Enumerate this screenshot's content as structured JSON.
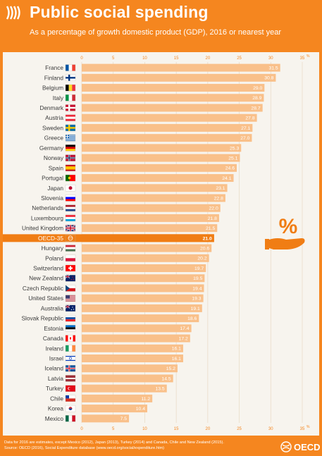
{
  "header": {
    "title": "Public social spending",
    "subtitle": "As a percentage of growth domestic product (GDP), 2016 or nearest year"
  },
  "footer": {
    "note": "Data for 2016 are estimates, except Mexico (2012), Japan (2013), Turkey (2014) and Canada, Chile and New Zealand (2015).",
    "source": "Source: OECD (2016), Social Expenditure database (www.oecd.org/social/expenditure.htm)",
    "brand": "OECD"
  },
  "icon": {
    "name": "percent-hand-icon",
    "symbol": "%"
  },
  "colors": {
    "frame": "#f5861f",
    "bar": "#f9c08a",
    "highlight": "#f07d14",
    "grid": "#e8d9c4",
    "axis_text": "#f5861f"
  },
  "chart_data": {
    "type": "bar",
    "orientation": "horizontal",
    "xlim": [
      0,
      35
    ],
    "ticks": [
      0,
      5,
      10,
      15,
      20,
      25,
      30,
      35
    ],
    "unit_label": "%",
    "grid": true,
    "highlight": "OECD-35",
    "categories": [
      "France",
      "Finland",
      "Belgium",
      "Italy",
      "Denmark",
      "Austria",
      "Sweden",
      "Greece",
      "Germany",
      "Norway",
      "Spain",
      "Portugal",
      "Japan",
      "Slovenia",
      "Netherlands",
      "Luxembourg",
      "United Kingdom",
      "OECD-35",
      "Hungary",
      "Poland",
      "Switzerland",
      "New Zealand",
      "Czech Republic",
      "United States",
      "Australia",
      "Slovak Republic",
      "Estonia",
      "Canada",
      "Ireland",
      "Israel",
      "Iceland",
      "Latvia",
      "Turkey",
      "Chile",
      "Korea",
      "Mexico"
    ],
    "values": [
      31.5,
      30.8,
      29.0,
      28.9,
      28.7,
      27.8,
      27.1,
      27.0,
      25.3,
      25.1,
      24.6,
      24.1,
      23.1,
      22.8,
      22.0,
      21.8,
      21.5,
      21.0,
      20.6,
      20.2,
      19.7,
      19.5,
      19.4,
      19.3,
      19.1,
      18.6,
      17.4,
      17.2,
      16.1,
      16.1,
      15.2,
      14.5,
      13.5,
      11.2,
      10.4,
      7.5
    ],
    "labels": [
      "31.5",
      "30.8",
      "29.0",
      "28.9",
      "28.7",
      "27.8",
      "27.1",
      "27.0",
      "25.3",
      "25.1",
      "24.6",
      "24.1",
      "23.1",
      "22.8",
      "22.0",
      "21.8",
      "21.5",
      "21.0",
      "20.6",
      "20.2",
      "19.7",
      "19.5",
      "19.4",
      "19.3",
      "19.1",
      "18.6",
      "17.4",
      "17.2",
      "16.1",
      "16.1",
      "15.2",
      "14.5",
      "13.5",
      "11.2",
      "10.4",
      "7.5"
    ],
    "flags": [
      "fr",
      "fi",
      "be",
      "it",
      "dk",
      "at",
      "se",
      "gr",
      "de",
      "no",
      "es",
      "pt",
      "jp",
      "si",
      "nl",
      "lu",
      "gb",
      "oecd",
      "hu",
      "pl",
      "ch",
      "nz",
      "cz",
      "us",
      "au",
      "sk",
      "ee",
      "ca",
      "ie",
      "il",
      "is",
      "lv",
      "tr",
      "cl",
      "kr",
      "mx"
    ]
  }
}
